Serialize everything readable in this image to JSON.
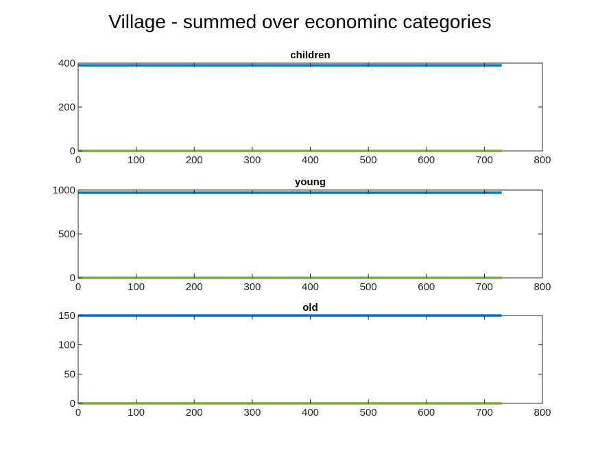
{
  "figure": {
    "title": "Village - summed over econominc categories"
  },
  "colors": {
    "series_blue": "#0072BD",
    "series_green": "#77AC30",
    "axis": "#262626"
  },
  "chart_data": [
    {
      "type": "line",
      "title": "children",
      "xlim": [
        0,
        800
      ],
      "ylim": [
        0,
        400
      ],
      "xticks": [
        0,
        100,
        200,
        300,
        400,
        500,
        600,
        700,
        800
      ],
      "yticks": [
        0,
        200,
        400
      ],
      "grid": false,
      "series": [
        {
          "color": "#0072BD",
          "x": [
            0,
            730
          ],
          "y": [
            390,
            390
          ]
        },
        {
          "color": "#77AC30",
          "x": [
            0,
            730
          ],
          "y": [
            0,
            0
          ]
        }
      ]
    },
    {
      "type": "line",
      "title": "young",
      "xlim": [
        0,
        800
      ],
      "ylim": [
        0,
        1000
      ],
      "xticks": [
        0,
        100,
        200,
        300,
        400,
        500,
        600,
        700,
        800
      ],
      "yticks": [
        0,
        500,
        1000
      ],
      "grid": false,
      "series": [
        {
          "color": "#0072BD",
          "x": [
            0,
            730
          ],
          "y": [
            970,
            970
          ]
        },
        {
          "color": "#77AC30",
          "x": [
            0,
            730
          ],
          "y": [
            0,
            0
          ]
        }
      ]
    },
    {
      "type": "line",
      "title": "old",
      "xlim": [
        0,
        800
      ],
      "ylim": [
        0,
        150
      ],
      "xticks": [
        0,
        100,
        200,
        300,
        400,
        500,
        600,
        700,
        800
      ],
      "yticks": [
        0,
        50,
        100,
        150
      ],
      "grid": false,
      "series": [
        {
          "color": "#0072BD",
          "x": [
            0,
            730
          ],
          "y": [
            150,
            150
          ]
        },
        {
          "color": "#77AC30",
          "x": [
            0,
            730
          ],
          "y": [
            0,
            0
          ]
        }
      ]
    }
  ]
}
